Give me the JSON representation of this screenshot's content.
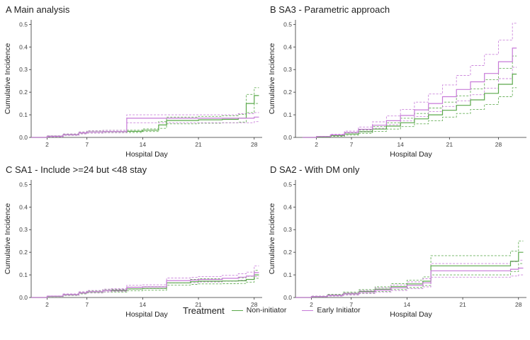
{
  "colors": {
    "non_initiator": "#5aa84a",
    "early_initiator": "#c77ad8",
    "axis": "#333333",
    "text": "#222222"
  },
  "legend": {
    "title": "Treatment",
    "items": [
      "Non-initiator",
      "Early Initiator"
    ]
  },
  "chart_data": [
    {
      "panel": "A",
      "title": "Main analysis",
      "type": "line",
      "xlabel": "Hospital Day",
      "ylabel": "Cumulative Incidence",
      "xlim": [
        0,
        29
      ],
      "ylim": [
        0,
        0.52
      ],
      "xticks": [
        2,
        7,
        14,
        21,
        28
      ],
      "yticks": [
        0.0,
        0.1,
        0.2,
        0.3,
        0.4,
        0.5
      ],
      "series": [
        {
          "name": "Non-initiator",
          "step": true,
          "x": [
            0,
            2,
            4,
            6,
            7,
            9,
            12,
            14,
            16,
            17,
            21,
            24,
            26,
            27,
            28
          ],
          "y": [
            0,
            0.005,
            0.012,
            0.02,
            0.024,
            0.026,
            0.027,
            0.032,
            0.055,
            0.075,
            0.078,
            0.08,
            0.085,
            0.15,
            0.185
          ],
          "lower": [
            0,
            0.003,
            0.009,
            0.016,
            0.019,
            0.021,
            0.022,
            0.026,
            0.04,
            0.06,
            0.063,
            0.065,
            0.068,
            0.11,
            0.15
          ],
          "upper": [
            0,
            0.007,
            0.015,
            0.024,
            0.029,
            0.031,
            0.032,
            0.038,
            0.07,
            0.09,
            0.093,
            0.096,
            0.102,
            0.19,
            0.22
          ]
        },
        {
          "name": "Early Initiator",
          "step": true,
          "x": [
            0,
            2,
            4,
            6,
            7,
            9,
            12,
            14,
            16,
            17,
            21,
            24,
            26,
            27,
            28
          ],
          "y": [
            0,
            0.005,
            0.012,
            0.02,
            0.024,
            0.026,
            0.085,
            0.085,
            0.085,
            0.085,
            0.085,
            0.085,
            0.085,
            0.085,
            0.09
          ],
          "lower": [
            0,
            0.003,
            0.009,
            0.016,
            0.019,
            0.021,
            0.065,
            0.065,
            0.065,
            0.065,
            0.065,
            0.065,
            0.065,
            0.065,
            0.07
          ],
          "upper": [
            0,
            0.007,
            0.015,
            0.024,
            0.029,
            0.031,
            0.1,
            0.1,
            0.1,
            0.1,
            0.1,
            0.1,
            0.105,
            0.105,
            0.11
          ]
        }
      ]
    },
    {
      "panel": "B",
      "title": "SA3 - Parametric approach",
      "type": "line",
      "xlabel": "Hospital Day",
      "ylabel": "Cumulative Incidence",
      "xlim": [
        -1,
        32
      ],
      "ylim": [
        0,
        0.52
      ],
      "xticks": [
        2,
        7,
        14,
        21,
        28
      ],
      "yticks": [
        0.0,
        0.1,
        0.2,
        0.3,
        0.4,
        0.5
      ],
      "series": [
        {
          "name": "Non-initiator",
          "step": true,
          "x": [
            0,
            2,
            4,
            6,
            8,
            10,
            12,
            14,
            16,
            18,
            20,
            22,
            24,
            26,
            28,
            30
          ],
          "y": [
            0,
            0.003,
            0.008,
            0.015,
            0.025,
            0.037,
            0.05,
            0.065,
            0.082,
            0.1,
            0.12,
            0.142,
            0.166,
            0.195,
            0.235,
            0.28
          ],
          "lower": [
            0,
            0.002,
            0.005,
            0.01,
            0.018,
            0.027,
            0.037,
            0.048,
            0.06,
            0.074,
            0.09,
            0.106,
            0.124,
            0.146,
            0.18,
            0.22
          ],
          "upper": [
            0,
            0.004,
            0.011,
            0.02,
            0.033,
            0.048,
            0.065,
            0.085,
            0.106,
            0.13,
            0.156,
            0.184,
            0.215,
            0.255,
            0.305,
            0.36
          ]
        },
        {
          "name": "Early Initiator",
          "step": true,
          "x": [
            0,
            2,
            4,
            6,
            8,
            10,
            12,
            14,
            16,
            18,
            20,
            22,
            24,
            26,
            28,
            30
          ],
          "y": [
            0,
            0.004,
            0.011,
            0.022,
            0.036,
            0.054,
            0.074,
            0.097,
            0.122,
            0.15,
            0.18,
            0.212,
            0.246,
            0.283,
            0.335,
            0.395
          ],
          "lower": [
            0,
            0.003,
            0.008,
            0.016,
            0.027,
            0.04,
            0.056,
            0.073,
            0.092,
            0.114,
            0.137,
            0.162,
            0.189,
            0.218,
            0.26,
            0.31
          ],
          "upper": [
            0,
            0.005,
            0.014,
            0.028,
            0.046,
            0.069,
            0.095,
            0.124,
            0.156,
            0.192,
            0.232,
            0.274,
            0.318,
            0.367,
            0.43,
            0.505
          ]
        }
      ]
    },
    {
      "panel": "C",
      "title": "SA1 - Include >=24 but <48 stay",
      "type": "line",
      "xlabel": "Hospital Day",
      "ylabel": "Cumulative Incidence",
      "xlim": [
        0,
        29
      ],
      "ylim": [
        0,
        0.52
      ],
      "xticks": [
        2,
        7,
        14,
        21,
        28
      ],
      "yticks": [
        0.0,
        0.1,
        0.2,
        0.3,
        0.4,
        0.5
      ],
      "series": [
        {
          "name": "Non-initiator",
          "step": true,
          "x": [
            0,
            2,
            4,
            6,
            7,
            9,
            10,
            12,
            14,
            16,
            17,
            20,
            21,
            24,
            26,
            27,
            28
          ],
          "y": [
            0,
            0.005,
            0.012,
            0.02,
            0.025,
            0.03,
            0.03,
            0.038,
            0.04,
            0.04,
            0.065,
            0.07,
            0.072,
            0.073,
            0.074,
            0.08,
            0.1
          ],
          "lower": [
            0,
            0.004,
            0.009,
            0.016,
            0.02,
            0.024,
            0.024,
            0.03,
            0.032,
            0.032,
            0.055,
            0.058,
            0.06,
            0.061,
            0.062,
            0.068,
            0.085
          ],
          "upper": [
            0,
            0.006,
            0.015,
            0.024,
            0.03,
            0.036,
            0.036,
            0.046,
            0.048,
            0.048,
            0.075,
            0.08,
            0.083,
            0.085,
            0.087,
            0.094,
            0.12
          ]
        },
        {
          "name": "Early Initiator",
          "step": true,
          "x": [
            0,
            2,
            4,
            6,
            7,
            9,
            10,
            12,
            14,
            16,
            17,
            20,
            21,
            24,
            26,
            27,
            28
          ],
          "y": [
            0,
            0.006,
            0.013,
            0.021,
            0.026,
            0.031,
            0.033,
            0.045,
            0.047,
            0.047,
            0.075,
            0.077,
            0.08,
            0.085,
            0.09,
            0.095,
            0.11
          ],
          "lower": [
            0,
            0.005,
            0.01,
            0.017,
            0.021,
            0.025,
            0.027,
            0.037,
            0.039,
            0.039,
            0.064,
            0.066,
            0.069,
            0.072,
            0.076,
            0.08,
            0.092
          ],
          "upper": [
            0,
            0.007,
            0.016,
            0.025,
            0.031,
            0.037,
            0.039,
            0.054,
            0.056,
            0.056,
            0.086,
            0.089,
            0.092,
            0.098,
            0.105,
            0.112,
            0.14
          ]
        }
      ]
    },
    {
      "panel": "D",
      "title": "SA2 - With DM only",
      "type": "line",
      "xlabel": "Hospital Day",
      "ylabel": "Cumulative Incidence",
      "xlim": [
        0,
        29
      ],
      "ylim": [
        0,
        0.52
      ],
      "xticks": [
        2,
        7,
        14,
        21,
        28
      ],
      "yticks": [
        0.0,
        0.1,
        0.2,
        0.3,
        0.4,
        0.5
      ],
      "series": [
        {
          "name": "Non-initiator",
          "step": true,
          "x": [
            0,
            2,
            4,
            6,
            8,
            10,
            12,
            14,
            16,
            17,
            20,
            24,
            27,
            28
          ],
          "y": [
            0,
            0.004,
            0.01,
            0.018,
            0.027,
            0.037,
            0.048,
            0.06,
            0.072,
            0.14,
            0.14,
            0.14,
            0.16,
            0.2
          ],
          "lower": [
            0,
            0.002,
            0.006,
            0.012,
            0.019,
            0.027,
            0.035,
            0.044,
            0.053,
            0.1,
            0.1,
            0.1,
            0.115,
            0.15
          ],
          "upper": [
            0,
            0.006,
            0.014,
            0.024,
            0.035,
            0.047,
            0.061,
            0.076,
            0.091,
            0.185,
            0.185,
            0.185,
            0.205,
            0.25
          ]
        },
        {
          "name": "Early Initiator",
          "step": true,
          "x": [
            0,
            2,
            4,
            6,
            8,
            10,
            12,
            14,
            16,
            17,
            20,
            24,
            27,
            28
          ],
          "y": [
            0,
            0.004,
            0.009,
            0.016,
            0.024,
            0.033,
            0.043,
            0.054,
            0.065,
            0.118,
            0.118,
            0.118,
            0.125,
            0.13
          ],
          "lower": [
            0,
            0.002,
            0.006,
            0.011,
            0.017,
            0.024,
            0.031,
            0.039,
            0.047,
            0.09,
            0.09,
            0.09,
            0.095,
            0.1
          ],
          "upper": [
            0,
            0.006,
            0.012,
            0.021,
            0.031,
            0.042,
            0.055,
            0.069,
            0.083,
            0.15,
            0.15,
            0.15,
            0.158,
            0.165
          ]
        }
      ]
    }
  ]
}
